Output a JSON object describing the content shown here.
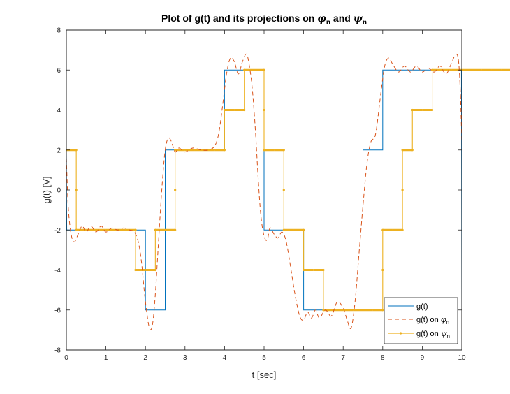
{
  "chart_data": {
    "type": "line",
    "title": "Plot of g(t) and its projections on φn and ψn",
    "title_parts": {
      "prefix": "Plot of g(t) and its projections on ",
      "sym1": "φ",
      "sub1": "n",
      "mid": " and ",
      "sym2": "ψ",
      "sub2": "n"
    },
    "xlabel": "t [sec]",
    "ylabel": "g(t) [V]",
    "xlim": [
      0,
      10
    ],
    "ylim": [
      -8,
      8
    ],
    "xticks": [
      0,
      1,
      2,
      3,
      4,
      5,
      6,
      7,
      8,
      9,
      10
    ],
    "yticks": [
      -8,
      -6,
      -4,
      -2,
      0,
      2,
      4,
      6,
      8
    ],
    "grid": false,
    "legend_position": "bottom-right",
    "series": [
      {
        "name": "g(t)",
        "style": "solid",
        "color": "#0072BD",
        "t": [
          0,
          0.01,
          2,
          2,
          2.5,
          2.5,
          4,
          4,
          5,
          5,
          6,
          6,
          7.5,
          7.5,
          8,
          8,
          9.99,
          10
        ],
        "v": [
          2,
          -2,
          -2,
          -6,
          -6,
          2,
          2,
          6,
          6,
          -2,
          -2,
          -6,
          -6,
          2,
          2,
          6,
          6,
          -6
        ]
      },
      {
        "name": "g(t) on φn",
        "label_main": "g(t) on ",
        "label_sym": "φ",
        "label_sub": "n",
        "style": "dashed",
        "color": "#D95319",
        "t": [
          0,
          0.05,
          0.12,
          0.2,
          0.3,
          0.4,
          0.5,
          0.62,
          0.75,
          0.88,
          1.0,
          1.15,
          1.3,
          1.45,
          1.6,
          1.72,
          1.82,
          1.9,
          2.0,
          2.1,
          2.18,
          2.25,
          2.33,
          2.42,
          2.5,
          2.58,
          2.66,
          2.75,
          2.85,
          3.0,
          3.2,
          3.4,
          3.6,
          3.75,
          3.85,
          3.95,
          4.05,
          4.15,
          4.25,
          4.35,
          4.45,
          4.55,
          4.62,
          4.7,
          4.78,
          4.85,
          4.92,
          5.0,
          5.08,
          5.15,
          5.25,
          5.35,
          5.45,
          5.55,
          5.65,
          5.78,
          5.9,
          6.0,
          6.1,
          6.2,
          6.3,
          6.4,
          6.55,
          6.7,
          6.85,
          7.0,
          7.1,
          7.2,
          7.3,
          7.4,
          7.5,
          7.6,
          7.7,
          7.82,
          7.95,
          8.05,
          8.15,
          8.25,
          8.4,
          8.55,
          8.7,
          8.85,
          9.0,
          9.15,
          9.3,
          9.45,
          9.6,
          9.75,
          9.85,
          9.92,
          9.97,
          10.0
        ],
        "v": [
          1.6,
          -0.9,
          -2.2,
          -2.6,
          -2.2,
          -1.8,
          -2.1,
          -1.8,
          -2.1,
          -1.8,
          -2.1,
          -1.9,
          -2.0,
          -1.9,
          -2.0,
          -2.1,
          -2.6,
          -3.6,
          -5.6,
          -6.9,
          -6.7,
          -5.2,
          -2.6,
          0.2,
          2.0,
          2.6,
          2.4,
          1.9,
          2.1,
          1.9,
          2.1,
          2.0,
          2.0,
          2.2,
          2.8,
          4.2,
          5.8,
          6.6,
          6.4,
          5.8,
          6.4,
          6.8,
          6.3,
          5.1,
          3.0,
          0.6,
          -1.3,
          -2.3,
          -2.5,
          -1.9,
          -2.2,
          -2.4,
          -2.1,
          -2.5,
          -3.6,
          -5.2,
          -6.3,
          -6.5,
          -6.1,
          -6.4,
          -6.0,
          -6.4,
          -6.0,
          -6.3,
          -5.6,
          -5.9,
          -6.5,
          -6.9,
          -5.6,
          -3.2,
          -0.8,
          1.3,
          2.4,
          2.8,
          4.8,
          6.2,
          6.6,
          6.3,
          5.9,
          6.2,
          5.9,
          6.2,
          5.9,
          6.1,
          5.9,
          6.2,
          5.8,
          6.4,
          6.8,
          6.4,
          4.5,
          2.3
        ]
      },
      {
        "name": "g(t) on ψn",
        "label_main": "g(t) on ",
        "label_sym": "ψ",
        "label_sub": "n",
        "style": "solid-with-dots",
        "color": "#EDB120",
        "levels": [
          2,
          -2,
          -2,
          -2,
          -2,
          -2,
          -2,
          -4,
          -4,
          -2,
          -2,
          2,
          2,
          2,
          2,
          2,
          4,
          4,
          6,
          6,
          2,
          2,
          -2,
          -2,
          -4,
          -4,
          -6,
          -6,
          -6,
          -6,
          -6,
          -6,
          -2,
          -2,
          2,
          4,
          4,
          6,
          6,
          6,
          6,
          6,
          6,
          6,
          6,
          6,
          6,
          6,
          2,
          2
        ],
        "step": 0.25
      }
    ]
  }
}
